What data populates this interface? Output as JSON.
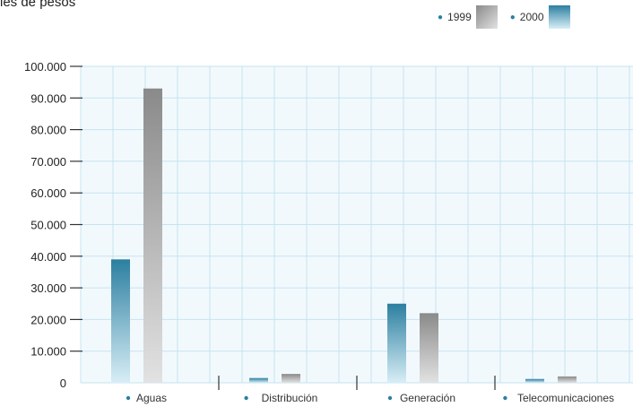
{
  "unit_label": "les de pesos",
  "chart_data": {
    "type": "bar",
    "categories": [
      "Aguas",
      "Distribución",
      "Generación",
      "Telecomunicaciones"
    ],
    "series": [
      {
        "name": "1999",
        "values": [
          93000,
          2800,
          22000,
          2000
        ]
      },
      {
        "name": "2000",
        "values": [
          39000,
          1500,
          25000,
          1200
        ]
      }
    ],
    "yticks": [
      "100.000",
      "90.000",
      "80.000",
      "70.000",
      "60.000",
      "50.000",
      "40.000",
      "30.000",
      "20.000",
      "10.000",
      "0"
    ],
    "ylim": [
      0,
      100000
    ],
    "grid": true,
    "legend_position": "top-right",
    "colors": {
      "1999_dark": "#8a8a8a",
      "1999_light": "#e2e2e2",
      "2000_dark": "#2c7fa0",
      "2000_light": "#d8eef6",
      "plot_bg": "#f2f9fd",
      "grid": "#c6e3f0"
    }
  }
}
